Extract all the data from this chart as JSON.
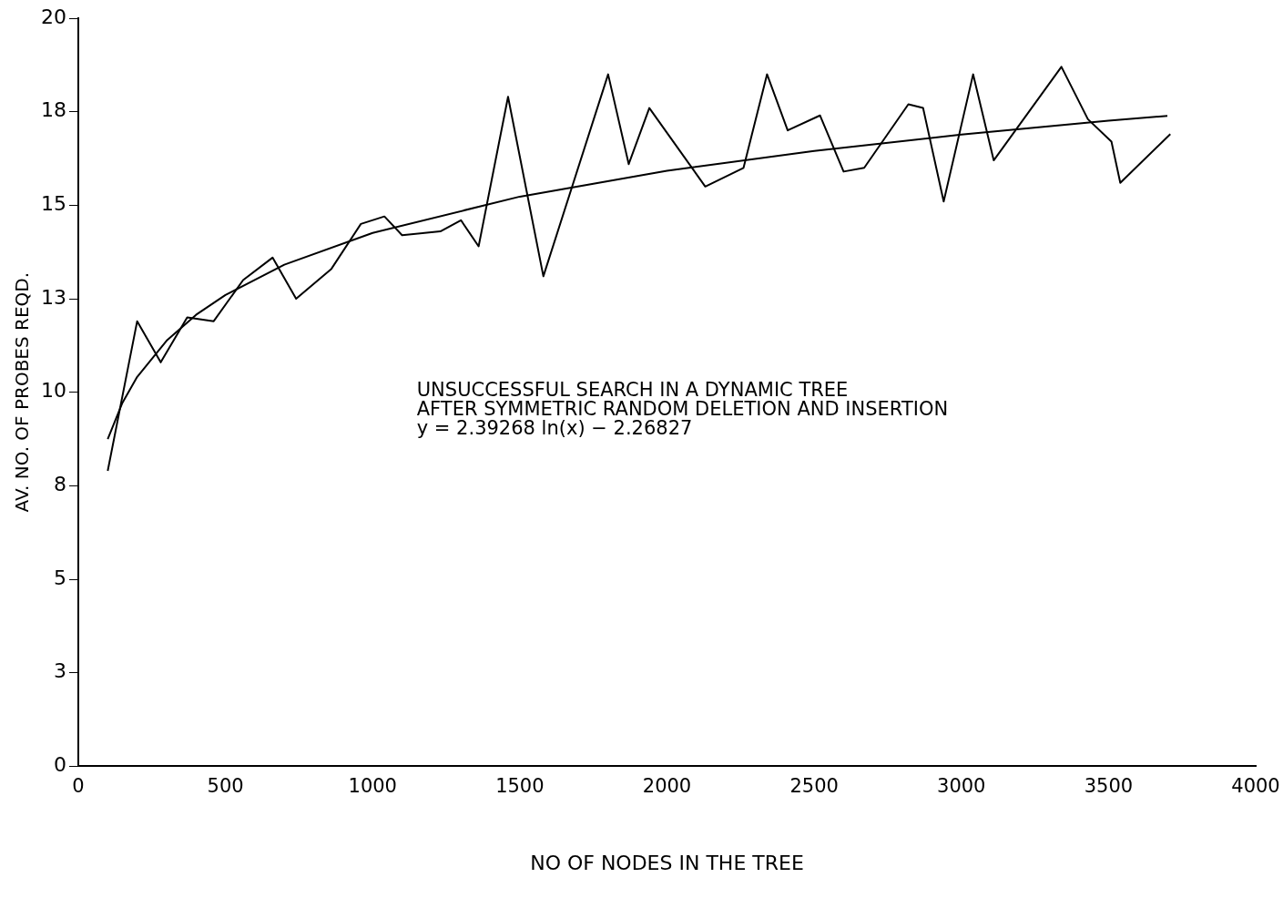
{
  "chart_data": {
    "type": "line",
    "xlabel": "NO OF NODES IN THE TREE",
    "ylabel": "AV. NO. OF PROBES REQD.",
    "annotations": [
      "UNSUCCESSFUL SEARCH IN A DYNAMIC TREE",
      "AFTER SYMMETRIC RANDOM DELETION AND INSERTION",
      "y = 2.39268 ln(x) − 2.26827"
    ],
    "series": [
      {
        "color": "#000000",
        "x": [
          100,
          200,
          280,
          370,
          460,
          560,
          660,
          740,
          860,
          960,
          1040,
          1100,
          1230,
          1300,
          1360,
          1460,
          1580,
          1800,
          1870,
          1940,
          2130,
          2260,
          2340,
          2410,
          2520,
          2600,
          2670,
          2820,
          2870,
          2940,
          3040,
          3110,
          3340,
          3430,
          3510,
          3540,
          3710
        ],
        "values": [
          7.9,
          11.9,
          10.8,
          12.0,
          11.9,
          13.0,
          13.6,
          12.5,
          13.3,
          14.5,
          14.7,
          14.2,
          14.3,
          14.6,
          13.9,
          17.9,
          13.1,
          18.5,
          16.1,
          17.6,
          15.5,
          16.0,
          18.5,
          17.0,
          17.4,
          15.9,
          16.0,
          17.7,
          17.6,
          15.1,
          18.5,
          16.2,
          18.7,
          17.3,
          16.7,
          15.6,
          16.9
        ]
      },
      {
        "color": "#000000",
        "x": [
          100,
          150,
          200,
          300,
          400,
          500,
          700,
          1000,
          1500,
          2000,
          2500,
          3000,
          3500,
          3700
        ],
        "values": [
          8.75,
          9.72,
          10.41,
          11.38,
          12.07,
          12.6,
          13.41,
          14.26,
          15.23,
          15.92,
          16.45,
          16.89,
          17.26,
          17.39
        ]
      }
    ],
    "xlim": [
      0,
      4000
    ],
    "xticks": [
      0,
      500,
      1000,
      1500,
      2000,
      2500,
      3000,
      3500,
      4000
    ],
    "ylim": [
      0,
      20
    ],
    "yticks": [
      0,
      {
        "value": 2.5,
        "label": "3"
      },
      5,
      {
        "value": 7.5,
        "label": "8"
      },
      10,
      {
        "value": 12.5,
        "label": "13"
      },
      15,
      {
        "value": 17.5,
        "label": "18"
      },
      20
    ],
    "grid": false,
    "legend": false,
    "marker": "none",
    "line_style": "solid"
  }
}
